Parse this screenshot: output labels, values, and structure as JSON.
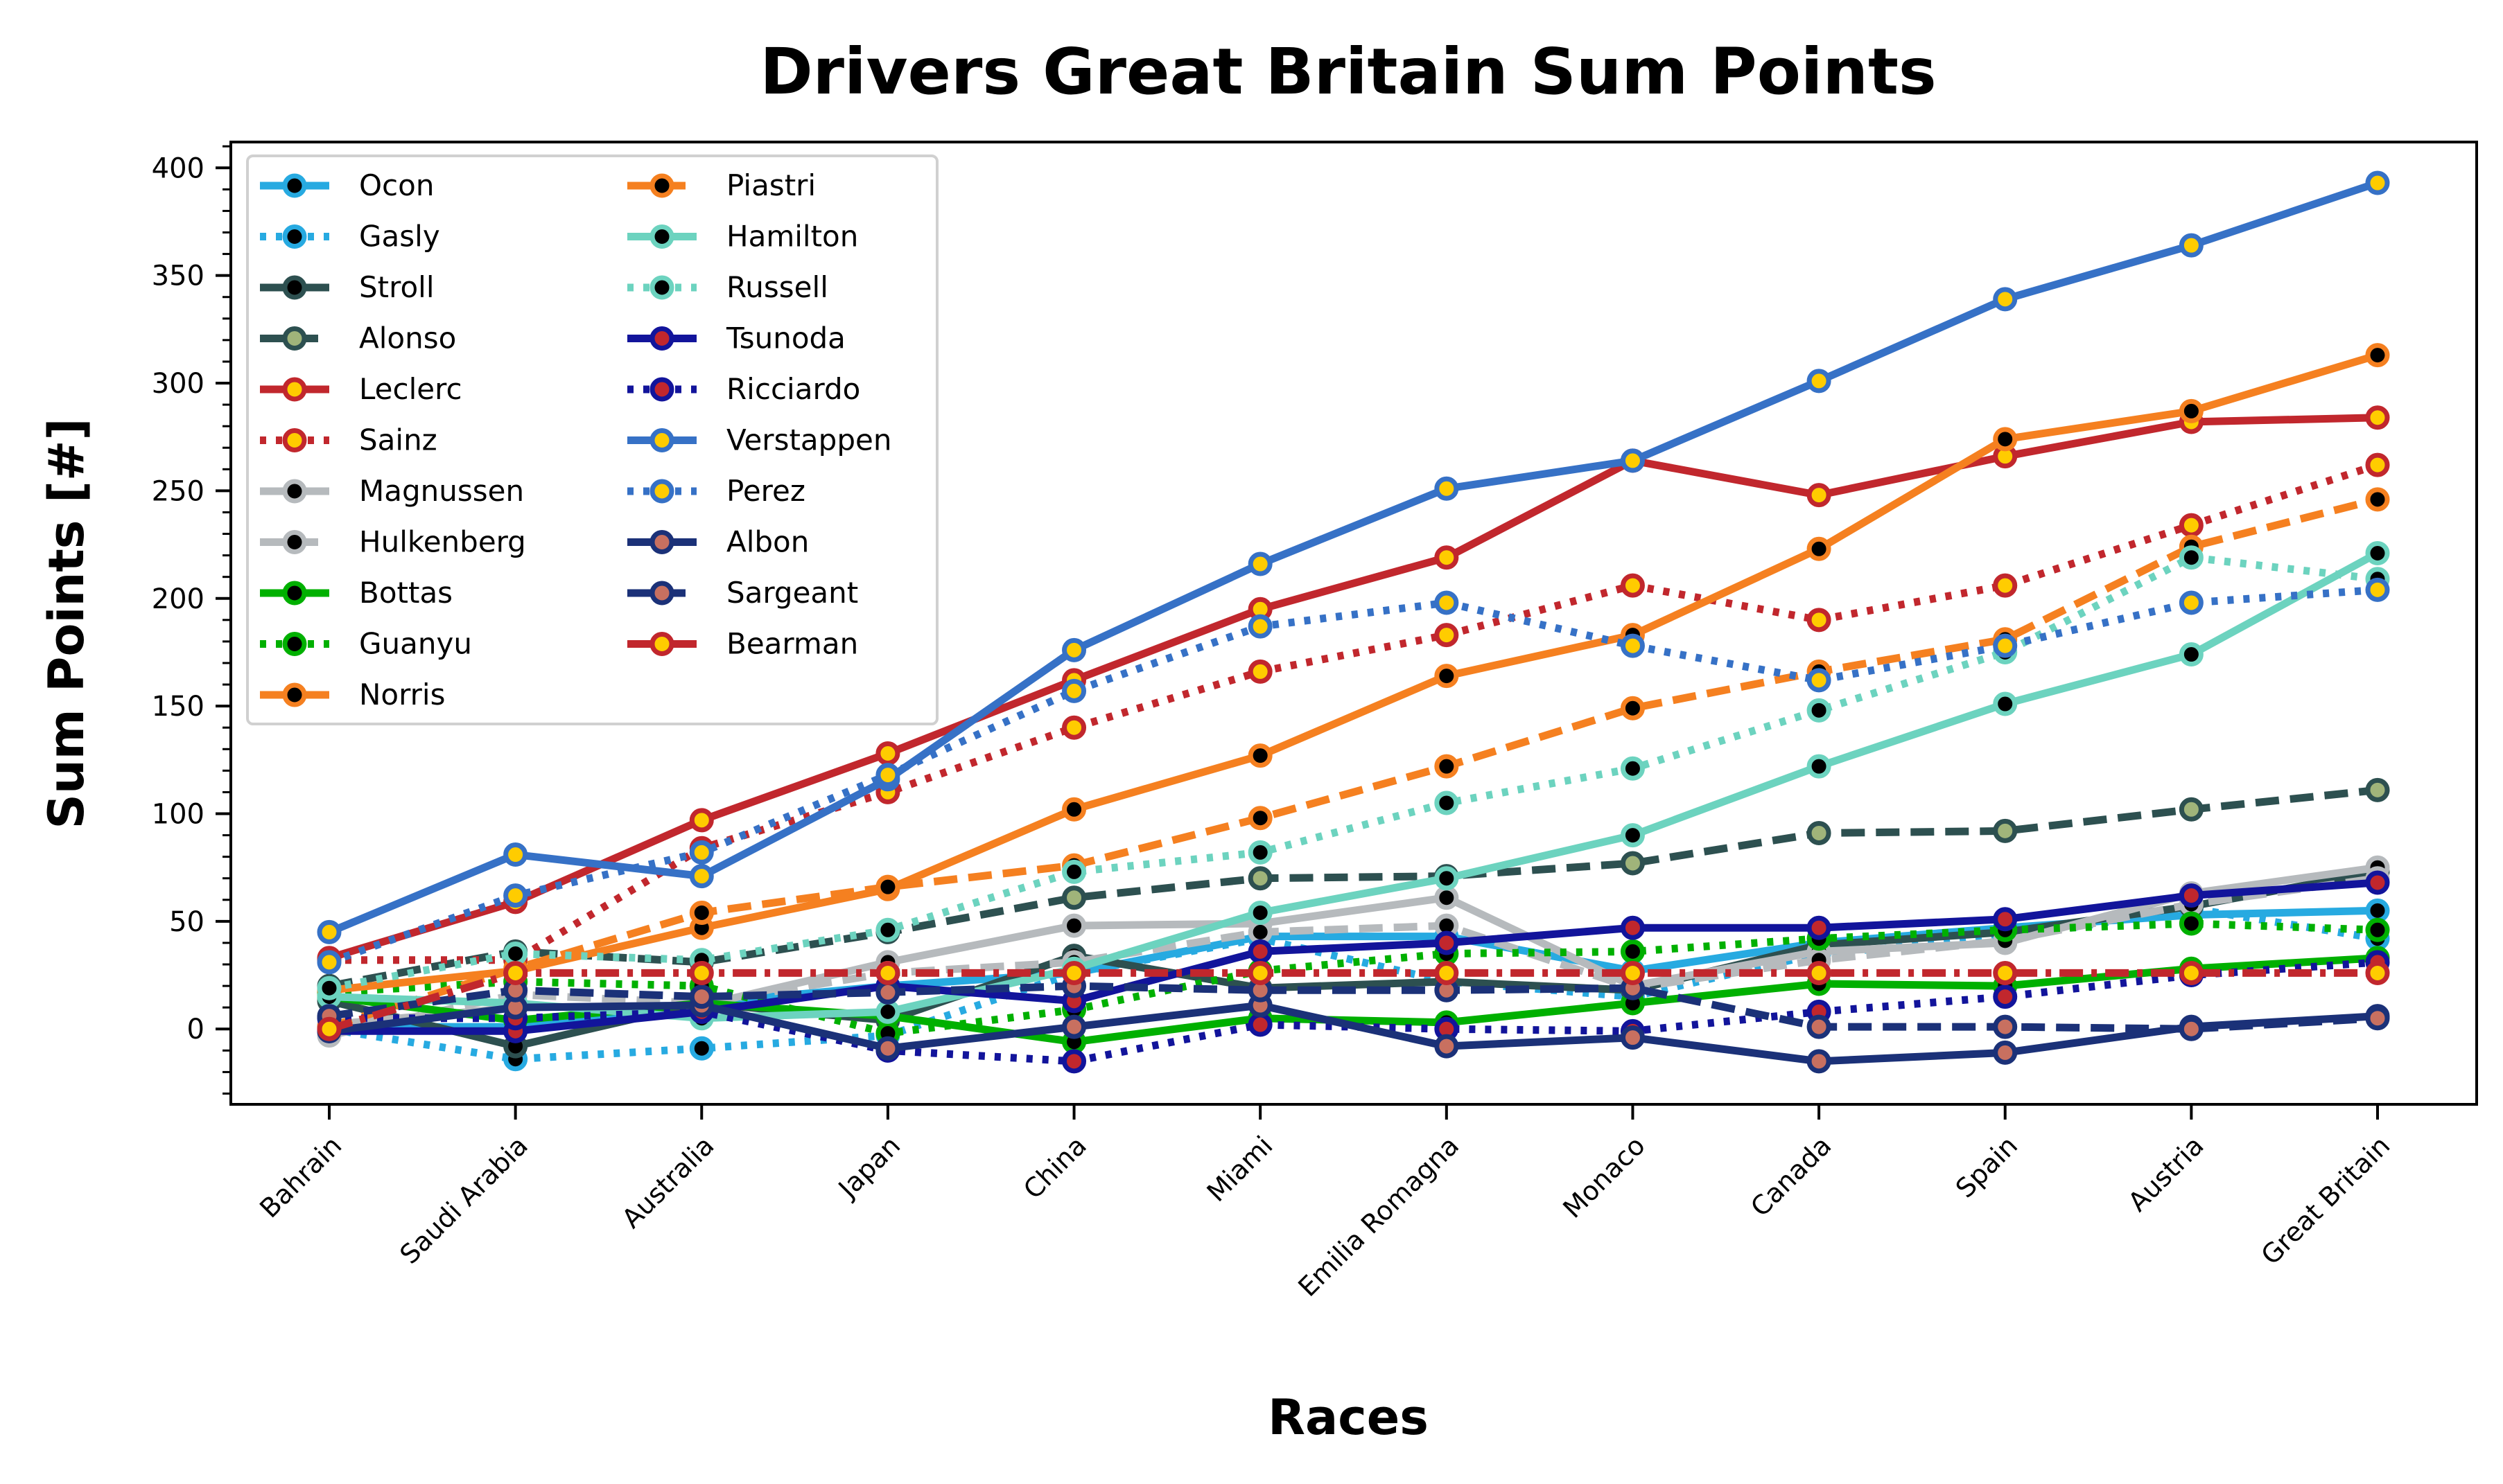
{
  "chart_data": {
    "type": "line",
    "title": "Drivers Great Britain Sum Points",
    "xlabel": "Races",
    "ylabel": "Sum Points [#]",
    "ylim": [
      -35,
      412
    ],
    "yticks": [
      0,
      50,
      100,
      150,
      200,
      250,
      300,
      350,
      400
    ],
    "grid": false,
    "legend_placement": "upper-left",
    "legend_columns": 2,
    "categories": [
      "Bahrain",
      "Saudi Arabia",
      "Australia",
      "Japan",
      "China",
      "Miami",
      "Emilia Romagna",
      "Monaco",
      "Canada",
      "Spain",
      "Austria",
      "Great Britain"
    ],
    "series": [
      {
        "name": "Ocon",
        "color": "#27aae1",
        "dash": "solid",
        "marker_fill": "#000000",
        "values": [
          1,
          1,
          12,
          20,
          26,
          43,
          43,
          27,
          40,
          47,
          53,
          55
        ]
      },
      {
        "name": "Gasly",
        "color": "#27aae1",
        "dash": "dotted",
        "marker_fill": "#000000",
        "values": [
          0,
          -14,
          -9,
          -3,
          26,
          42,
          22,
          15,
          35,
          42,
          56,
          42
        ]
      },
      {
        "name": "Stroll",
        "color": "#2d5050",
        "dash": "solid",
        "marker_fill": "#000000",
        "values": [
          13,
          -8,
          12,
          4,
          34,
          19,
          22,
          18,
          39,
          45,
          57,
          73
        ]
      },
      {
        "name": "Alonso",
        "color": "#2d5050",
        "dash": "dashed",
        "marker_fill": "#a0b47a",
        "values": [
          20,
          36,
          31,
          45,
          61,
          70,
          71,
          77,
          91,
          92,
          102,
          111
        ]
      },
      {
        "name": "Leclerc",
        "color": "#c1272d",
        "dash": "solid",
        "marker_fill": "#ffcc00",
        "values": [
          33,
          59,
          97,
          128,
          162,
          195,
          219,
          264,
          248,
          266,
          282,
          284
        ]
      },
      {
        "name": "Sainz",
        "color": "#c1272d",
        "dash": "dotted",
        "marker_fill": "#ffcc00",
        "values": [
          32,
          32,
          84,
          110,
          140,
          166,
          183,
          206,
          190,
          206,
          234,
          262
        ]
      },
      {
        "name": "Magnussen",
        "color": "#b6babd",
        "dash": "solid",
        "marker_fill": "#000000",
        "values": [
          2,
          10,
          11,
          31,
          48,
          49,
          61,
          20,
          36,
          40,
          63,
          75
        ]
      },
      {
        "name": "Hulkenberg",
        "color": "#b6babd",
        "dash": "dashed",
        "marker_fill": "#000000",
        "values": [
          -3,
          16,
          12,
          26,
          31,
          45,
          48,
          19,
          32,
          41,
          58,
          70
        ]
      },
      {
        "name": "Bottas",
        "color": "#00b000",
        "dash": "solid",
        "marker_fill": "#000000",
        "values": [
          15,
          4,
          12,
          6,
          -6,
          5,
          3,
          12,
          21,
          20,
          28,
          33
        ]
      },
      {
        "name": "Guanyu",
        "color": "#00b000",
        "dash": "dotted",
        "marker_fill": "#000000",
        "values": [
          17,
          22,
          20,
          -2,
          9,
          27,
          35,
          36,
          42,
          46,
          49,
          46
        ]
      },
      {
        "name": "Norris",
        "color": "#f58020",
        "dash": "solid",
        "marker_fill": "#000000",
        "values": [
          18,
          27,
          47,
          65,
          102,
          127,
          164,
          183,
          223,
          274,
          287,
          313
        ]
      },
      {
        "name": "Piastri",
        "color": "#f58020",
        "dash": "dashed",
        "marker_fill": "#000000",
        "values": [
          1,
          28,
          54,
          66,
          76,
          98,
          122,
          149,
          166,
          181,
          224,
          246
        ]
      },
      {
        "name": "Hamilton",
        "color": "#6cd3bf",
        "dash": "solid",
        "marker_fill": "#000000",
        "values": [
          15,
          12,
          5,
          8,
          28,
          54,
          70,
          90,
          122,
          151,
          174,
          221
        ]
      },
      {
        "name": "Russell",
        "color": "#6cd3bf",
        "dash": "dotted",
        "marker_fill": "#000000",
        "values": [
          19,
          35,
          32,
          46,
          73,
          82,
          105,
          121,
          148,
          175,
          219,
          209
        ]
      },
      {
        "name": "Tsunoda",
        "color": "#12149b",
        "dash": "solid",
        "marker_fill": "#c1272d",
        "values": [
          -1,
          -1,
          8,
          20,
          13,
          36,
          40,
          47,
          47,
          51,
          62,
          68
        ]
      },
      {
        "name": "Ricciardo",
        "color": "#12149b",
        "dash": "dotted",
        "marker_fill": "#c1272d",
        "values": [
          5,
          5,
          8,
          -10,
          -15,
          2,
          0,
          -1,
          8,
          15,
          25,
          31
        ]
      },
      {
        "name": "Verstappen",
        "color": "#3671c6",
        "dash": "solid",
        "marker_fill": "#ffcc00",
        "values": [
          45,
          81,
          71,
          116,
          176,
          216,
          251,
          264,
          301,
          339,
          364,
          393
        ]
      },
      {
        "name": "Perez",
        "color": "#3671c6",
        "dash": "dotted",
        "marker_fill": "#ffcc00",
        "values": [
          31,
          62,
          82,
          118,
          157,
          187,
          198,
          178,
          162,
          178,
          198,
          204
        ]
      },
      {
        "name": "Albon",
        "color": "#1b3178",
        "dash": "solid",
        "marker_fill": "#c87060",
        "values": [
          -1,
          10,
          11,
          -9,
          1,
          11,
          -8,
          -4,
          -15,
          -11,
          1,
          6
        ]
      },
      {
        "name": "Sargeant",
        "color": "#1b3178",
        "dash": "dashed",
        "marker_fill": "#c87060",
        "values": [
          6,
          18,
          15,
          17,
          20,
          18,
          18,
          19,
          1,
          1,
          0,
          5
        ]
      },
      {
        "name": "Bearman",
        "color": "#c1272d",
        "dash": "dashdot",
        "marker_fill": "#ffcc00",
        "values": [
          0,
          26,
          26,
          26,
          26,
          26,
          26,
          26,
          26,
          26,
          26,
          26
        ]
      }
    ]
  }
}
